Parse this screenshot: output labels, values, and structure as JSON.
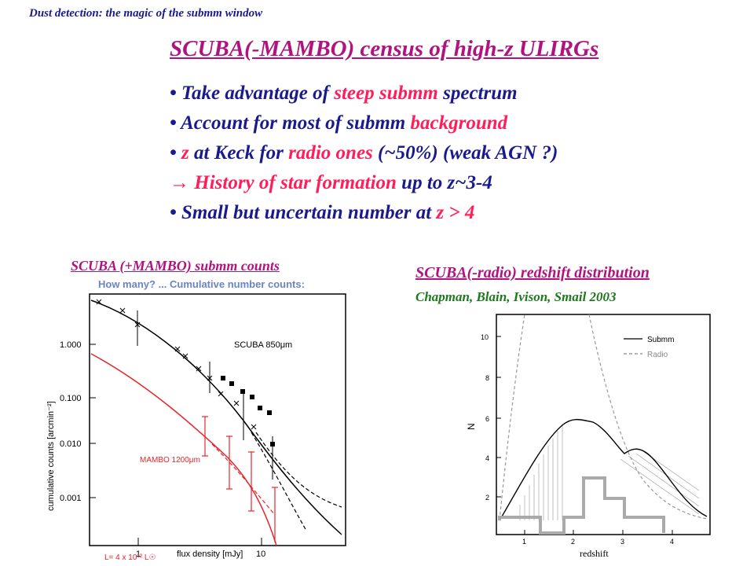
{
  "header": "Dust detection: the magic of the submm window",
  "title": "SCUBA(-MAMBO) census of high-z ULIRGs",
  "bullets": [
    {
      "bullet": "•",
      "pre": "Take advantage of ",
      "hl": "steep submm",
      "post": " spectrum"
    },
    {
      "bullet": "•",
      "pre": "Account for most of submm ",
      "hl": "background",
      "post": ""
    },
    {
      "bullet": "•",
      "pre": "",
      "hl": "z",
      "post": " at Keck for ",
      "hl2": "radio ones",
      "post2": " (~50%) (weak AGN ?)"
    },
    {
      "bullet": "→",
      "pre": "",
      "hl": "History of star formation",
      "post": " up to z~3-4"
    },
    {
      "bullet": "•",
      "pre": "Small but uncertain number at ",
      "hl": "z > 4",
      "post": ""
    }
  ],
  "left_figure": {
    "caption": "SCUBA (+MAMBO) submm counts",
    "banner": "How many? ... Cumulative number counts:",
    "ylabel": "cumulative counts [arcmin⁻²]",
    "xlabel": "flux density [mJy]",
    "yticks": [
      "1.000",
      "0.100",
      "0.010",
      "0.001"
    ],
    "xticks": [
      "1",
      "10"
    ],
    "label_scuba": "SCUBA 850μm",
    "label_mambo": "MAMBO 1200μm",
    "footnote": "L= 4 x 10¹² L☉"
  },
  "right_figure": {
    "caption": "SCUBA(-radio) redshift distribution",
    "authors": "Chapman, Blain, Ivison, Smail 2003",
    "ylabel": "N",
    "xlabel": "redshift",
    "legend_submm": "Submm",
    "legend_radio": "Radio",
    "yticks": [
      "2",
      "4",
      "6",
      "8",
      "10"
    ],
    "xticks": [
      "1",
      "2",
      "3",
      "4"
    ]
  },
  "colors": {
    "navy": "#1a1a8c",
    "magenta": "#b0127e",
    "pink": "#ff1e5a",
    "green": "#1c7a1c",
    "red": "#e8242a"
  }
}
